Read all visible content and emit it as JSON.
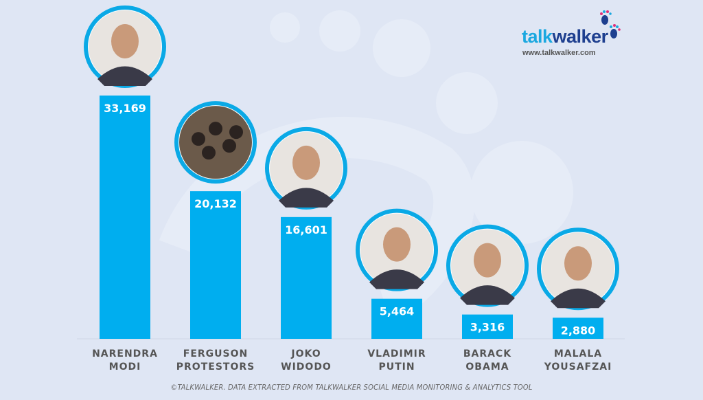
{
  "brand": {
    "name_part1": "talk",
    "name_part2": "walker",
    "url": "www.talkwalker.com"
  },
  "footer": "©TALKWALKER. DATA EXTRACTED FROM TALKWALKER SOCIAL MEDIA MONITORING & ANALYTICS TOOL",
  "colors": {
    "bar": "#00aeef",
    "ring": "#0aa9e6",
    "background": "#dfe6f4",
    "label": "#555555"
  },
  "chart_data": {
    "type": "bar",
    "categories": [
      [
        "NARENDRA",
        "MODI"
      ],
      [
        "FERGUSON",
        "PROTESTORS"
      ],
      [
        "JOKO",
        "WIDODO"
      ],
      [
        "VLADIMIR",
        "PUTIN"
      ],
      [
        "BARACK",
        "OBAMA"
      ],
      [
        "MALALA",
        "YOUSAFZAI"
      ]
    ],
    "values": [
      33169,
      20132,
      16601,
      5464,
      3316,
      2880
    ],
    "value_labels": [
      "33,169",
      "20,132",
      "16,601",
      "5,464",
      "3,316",
      "2,880"
    ],
    "photo_icons": [
      "portrait-photo",
      "crowd-photo",
      "portrait-photo",
      "portrait-photo",
      "portrait-photo",
      "portrait-photo"
    ],
    "ylim": [
      0,
      33169
    ],
    "grid": false,
    "legend": "none"
  }
}
